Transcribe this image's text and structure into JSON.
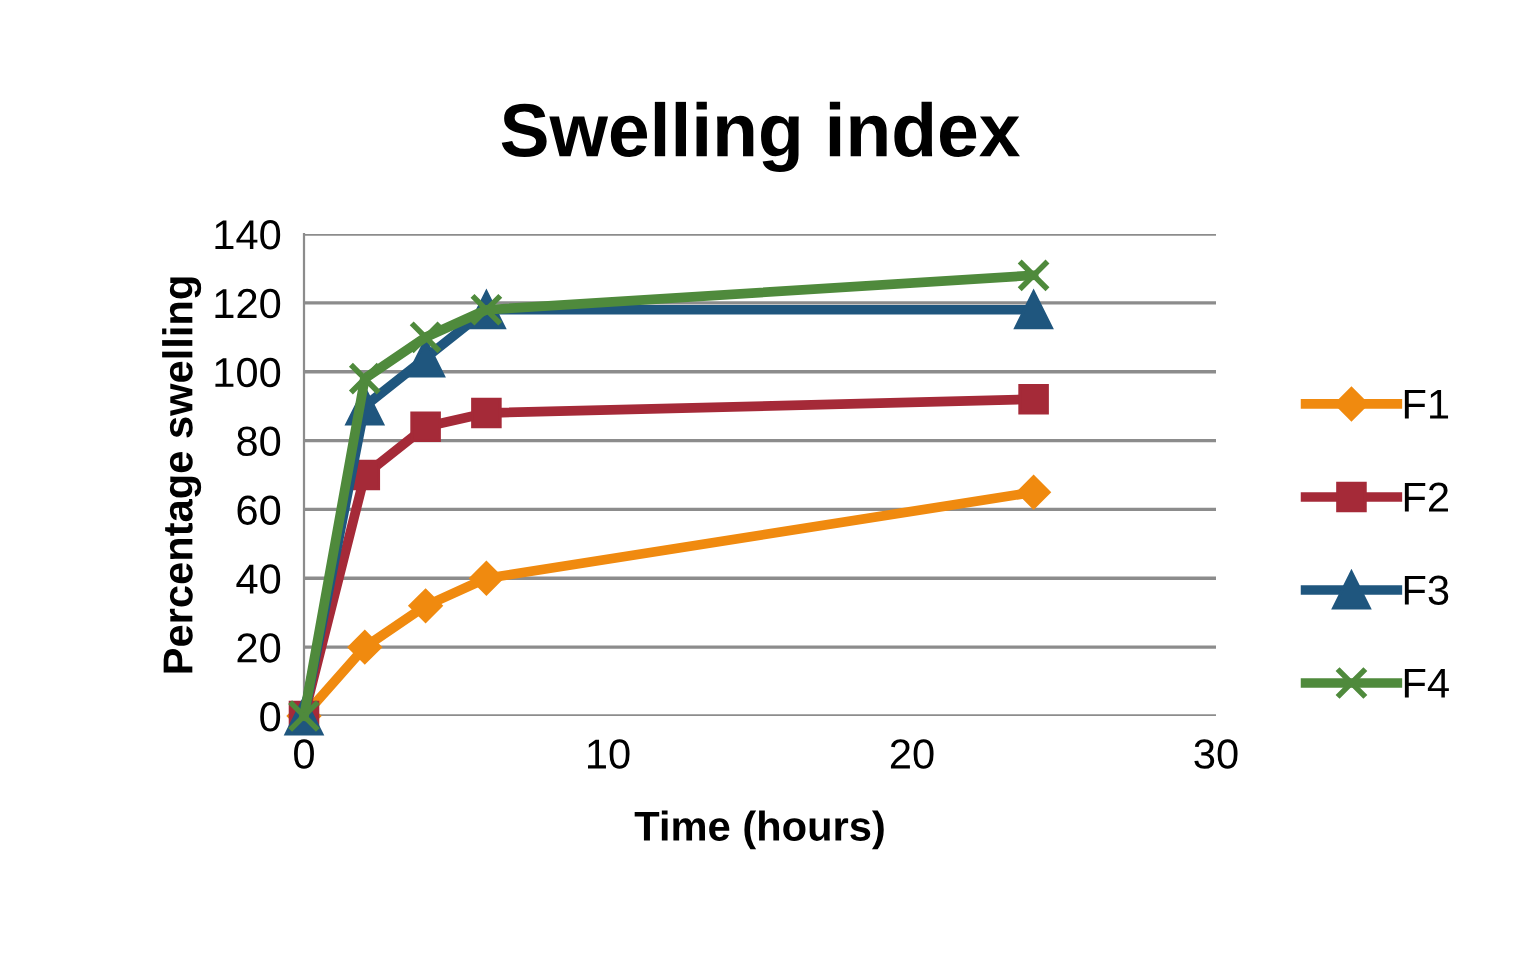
{
  "chart_data": {
    "type": "line",
    "title": "Swelling index",
    "xlabel": "Time (hours)",
    "ylabel": "Percentage swelling",
    "x": [
      0,
      2,
      4,
      6,
      24
    ],
    "series": [
      {
        "name": "F1",
        "color": "#f08a0f",
        "marker": "diamond",
        "values": [
          0,
          20,
          32,
          40,
          65
        ]
      },
      {
        "name": "F2",
        "color": "#a52a38",
        "marker": "square",
        "values": [
          0,
          70,
          84,
          88,
          92
        ]
      },
      {
        "name": "F3",
        "color": "#1f567e",
        "marker": "triangle",
        "values": [
          0,
          90,
          104,
          118,
          118
        ]
      },
      {
        "name": "F4",
        "color": "#4f8a3c",
        "marker": "cross",
        "values": [
          0,
          98,
          110,
          118,
          128
        ]
      }
    ],
    "xlim": [
      0,
      30
    ],
    "xticks": [
      0,
      10,
      20,
      30
    ],
    "ylim": [
      0,
      140
    ],
    "yticks": [
      0,
      20,
      40,
      60,
      80,
      100,
      120,
      140
    ],
    "grid": "y",
    "legend": "right",
    "line_style": "solid"
  }
}
